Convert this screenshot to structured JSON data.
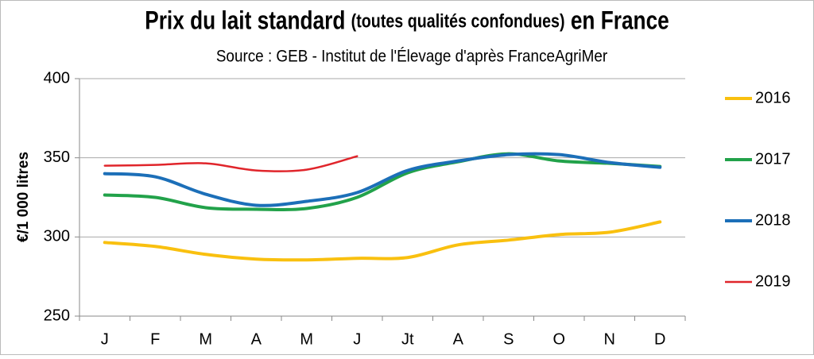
{
  "chart_data": {
    "type": "line",
    "title": [
      "Prix du lait standard",
      "(toutes qualités confondues)",
      "en France"
    ],
    "subtitle": "Source : GEB - Institut de l'Élevage d'après FranceAgriMer",
    "y_label": "€/1 000 litres",
    "categories": [
      "J",
      "F",
      "M",
      "A",
      "M",
      "J",
      "Jt",
      "A",
      "S",
      "O",
      "N",
      "D"
    ],
    "ylim": [
      250,
      400
    ],
    "yticks": [
      250,
      300,
      350,
      400
    ],
    "grid": true,
    "legend": "right",
    "series": [
      {
        "name": "2016",
        "color": "#f9c00f",
        "values": [
          296.5,
          294,
          289,
          286,
          285.5,
          286.5,
          287,
          295,
          298,
          301.5,
          303,
          309.5
        ]
      },
      {
        "name": "2017",
        "color": "#22a24a",
        "values": [
          326.5,
          325,
          318.5,
          317.5,
          318,
          325,
          340.5,
          347.5,
          352.5,
          348,
          346.5,
          344.5
        ]
      },
      {
        "name": "2018",
        "color": "#1c6fb8",
        "values": [
          340,
          338,
          327,
          320,
          322.5,
          328,
          342,
          348,
          352,
          352,
          347,
          344
        ]
      },
      {
        "name": "2019",
        "color": "#e0252b",
        "values": [
          345,
          345.5,
          346.5,
          342,
          342.5,
          351,
          null,
          null,
          null,
          null,
          null,
          null
        ]
      }
    ]
  }
}
